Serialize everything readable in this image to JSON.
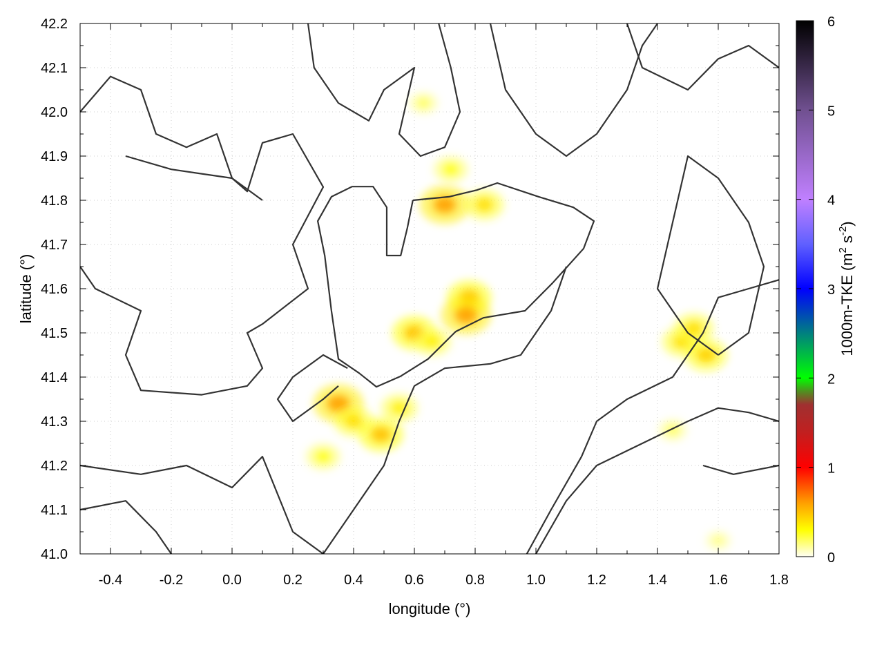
{
  "chart_data": {
    "type": "heatmap",
    "title": "",
    "xlabel": "longitude (°)",
    "ylabel": "latitude (°)",
    "colorbar_label": "1000m-TKE (m² s⁻²)",
    "colorbar_label_parts": {
      "main": "1000m-TKE (m",
      "sup1": "2",
      "mid": " s",
      "sup2": "-2",
      "end": ")"
    },
    "xlim": [
      -0.5,
      1.8
    ],
    "ylim": [
      41.0,
      42.2
    ],
    "zlim": [
      0,
      6
    ],
    "grid": true,
    "xticks": [
      "-0.4",
      "-0.2",
      "0.0",
      "0.2",
      "0.4",
      "0.6",
      "0.8",
      "1.0",
      "1.2",
      "1.4",
      "1.6",
      "1.8"
    ],
    "yticks": [
      "41.0",
      "41.1",
      "41.2",
      "41.3",
      "41.4",
      "41.5",
      "41.6",
      "41.7",
      "41.8",
      "41.9",
      "42.0",
      "42.1",
      "42.2"
    ],
    "cbticks": [
      "0",
      "1",
      "2",
      "3",
      "4",
      "5",
      "6"
    ],
    "colormap": [
      {
        "v": 0,
        "c": "#fffff4"
      },
      {
        "v": 0.3,
        "c": "#ffff00"
      },
      {
        "v": 0.6,
        "c": "#ffa000"
      },
      {
        "v": 1.0,
        "c": "#ff0000"
      },
      {
        "v": 1.4,
        "c": "#c02020"
      },
      {
        "v": 1.7,
        "c": "#a03030"
      },
      {
        "v": 1.85,
        "c": "#509020"
      },
      {
        "v": 2.0,
        "c": "#00ff00"
      },
      {
        "v": 2.5,
        "c": "#008080"
      },
      {
        "v": 3.0,
        "c": "#0000ff"
      },
      {
        "v": 3.5,
        "c": "#6060ff"
      },
      {
        "v": 4.0,
        "c": "#c080ff"
      },
      {
        "v": 5.0,
        "c": "#705090"
      },
      {
        "v": 6.0,
        "c": "#000000"
      }
    ],
    "contour_color": "#333333",
    "tke_hotspots": [
      {
        "lon": 0.7,
        "lat": 41.79,
        "value": 0.6
      },
      {
        "lon": 0.83,
        "lat": 41.79,
        "value": 0.4
      },
      {
        "lon": 0.78,
        "lat": 41.58,
        "value": 0.5
      },
      {
        "lon": 0.77,
        "lat": 41.54,
        "value": 0.6
      },
      {
        "lon": 0.6,
        "lat": 41.5,
        "value": 0.5
      },
      {
        "lon": 0.35,
        "lat": 41.34,
        "value": 0.6
      },
      {
        "lon": 0.49,
        "lat": 41.27,
        "value": 0.5
      },
      {
        "lon": 0.4,
        "lat": 41.3,
        "value": 0.4
      },
      {
        "lon": 1.48,
        "lat": 41.48,
        "value": 0.4
      },
      {
        "lon": 1.56,
        "lat": 41.45,
        "value": 0.45
      },
      {
        "lon": 1.52,
        "lat": 41.51,
        "value": 0.4
      },
      {
        "lon": 0.72,
        "lat": 41.87,
        "value": 0.3
      },
      {
        "lon": 0.3,
        "lat": 41.22,
        "value": 0.3
      },
      {
        "lon": 1.6,
        "lat": 41.03,
        "value": 0.15
      },
      {
        "lon": 1.45,
        "lat": 41.28,
        "value": 0.2
      },
      {
        "lon": 0.63,
        "lat": 42.02,
        "value": 0.2
      },
      {
        "lon": 0.55,
        "lat": 41.33,
        "value": 0.35
      },
      {
        "lon": 0.66,
        "lat": 41.48,
        "value": 0.35
      }
    ],
    "contours": [
      [
        [
          0.595,
          41.8
        ],
        [
          0.714,
          41.808
        ],
        [
          0.805,
          41.823
        ],
        [
          0.873,
          41.839
        ],
        [
          1.009,
          41.808
        ],
        [
          1.123,
          41.784
        ],
        [
          1.191,
          41.753
        ],
        [
          1.157,
          41.691
        ],
        [
          1.055,
          41.613
        ],
        [
          0.964,
          41.55
        ],
        [
          0.827,
          41.534
        ],
        [
          0.736,
          41.503
        ],
        [
          0.645,
          41.441
        ],
        [
          0.555,
          41.402
        ],
        [
          0.475,
          41.378
        ],
        [
          0.418,
          41.409
        ],
        [
          0.35,
          41.441
        ],
        [
          0.327,
          41.55
        ],
        [
          0.305,
          41.675
        ],
        [
          0.282,
          41.753
        ],
        [
          0.327,
          41.808
        ],
        [
          0.395,
          41.831
        ],
        [
          0.464,
          41.831
        ],
        [
          0.509,
          41.784
        ],
        [
          0.509,
          41.675
        ],
        [
          0.555,
          41.675
        ],
        [
          0.577,
          41.738
        ],
        [
          0.595,
          41.8
        ]
      ],
      [
        [
          -0.5,
          41.65
        ],
        [
          -0.45,
          41.6
        ],
        [
          -0.3,
          41.55
        ],
        [
          -0.35,
          41.45
        ],
        [
          -0.3,
          41.37
        ],
        [
          -0.1,
          41.36
        ],
        [
          0.05,
          41.38
        ],
        [
          0.1,
          41.42
        ],
        [
          0.05,
          41.5
        ],
        [
          0.1,
          41.52
        ],
        [
          0.25,
          41.6
        ],
        [
          0.2,
          41.7
        ],
        [
          0.3,
          41.83
        ],
        [
          0.2,
          41.95
        ],
        [
          0.1,
          41.93
        ],
        [
          0.05,
          41.82
        ],
        [
          0.0,
          41.85
        ],
        [
          -0.2,
          41.87
        ],
        [
          -0.35,
          41.9
        ]
      ],
      [
        [
          0.97,
          41.0
        ],
        [
          1.05,
          41.1
        ],
        [
          1.15,
          41.22
        ],
        [
          1.2,
          41.3
        ],
        [
          1.3,
          41.35
        ],
        [
          1.45,
          41.4
        ],
        [
          1.55,
          41.5
        ],
        [
          1.6,
          41.58
        ],
        [
          1.7,
          41.6
        ],
        [
          1.8,
          41.62
        ]
      ],
      [
        [
          1.0,
          41.0
        ],
        [
          1.1,
          41.12
        ],
        [
          1.2,
          41.2
        ],
        [
          1.35,
          41.25
        ],
        [
          1.5,
          41.3
        ],
        [
          1.6,
          41.33
        ],
        [
          1.7,
          41.32
        ],
        [
          1.8,
          41.3
        ]
      ],
      [
        [
          -0.5,
          42.0
        ],
        [
          -0.4,
          42.08
        ],
        [
          -0.3,
          42.05
        ],
        [
          -0.25,
          41.95
        ],
        [
          -0.15,
          41.92
        ],
        [
          -0.05,
          41.95
        ],
        [
          0.0,
          41.85
        ],
        [
          0.1,
          41.8
        ]
      ],
      [
        [
          0.85,
          42.2
        ],
        [
          0.9,
          42.05
        ],
        [
          1.0,
          41.95
        ],
        [
          1.1,
          41.9
        ],
        [
          1.2,
          41.95
        ],
        [
          1.3,
          42.05
        ],
        [
          1.35,
          42.15
        ],
        [
          1.4,
          42.2
        ]
      ],
      [
        [
          -0.5,
          41.2
        ],
        [
          -0.3,
          41.18
        ],
        [
          -0.15,
          41.2
        ],
        [
          0.0,
          41.15
        ],
        [
          0.1,
          41.22
        ],
        [
          0.2,
          41.05
        ],
        [
          0.3,
          41.0
        ]
      ],
      [
        [
          1.6,
          41.45
        ],
        [
          1.7,
          41.5
        ],
        [
          1.75,
          41.65
        ],
        [
          1.7,
          41.75
        ],
        [
          1.6,
          41.85
        ],
        [
          1.5,
          41.9
        ],
        [
          1.45,
          41.75
        ],
        [
          1.4,
          41.6
        ],
        [
          1.5,
          41.5
        ],
        [
          1.6,
          41.45
        ]
      ],
      [
        [
          0.3,
          41.0
        ],
        [
          0.4,
          41.1
        ],
        [
          0.5,
          41.2
        ],
        [
          0.55,
          41.3
        ],
        [
          0.6,
          41.38
        ],
        [
          0.7,
          41.42
        ],
        [
          0.85,
          41.43
        ],
        [
          0.95,
          41.45
        ],
        [
          1.05,
          41.55
        ],
        [
          1.1,
          41.65
        ]
      ],
      [
        [
          0.25,
          42.2
        ],
        [
          0.27,
          42.1
        ],
        [
          0.35,
          42.02
        ],
        [
          0.45,
          41.98
        ],
        [
          0.5,
          42.05
        ],
        [
          0.6,
          42.1
        ],
        [
          0.55,
          41.95
        ],
        [
          0.62,
          41.9
        ],
        [
          0.7,
          41.92
        ],
        [
          0.75,
          42.0
        ],
        [
          0.72,
          42.1
        ],
        [
          0.68,
          42.2
        ]
      ],
      [
        [
          0.35,
          41.38
        ],
        [
          0.3,
          41.35
        ],
        [
          0.2,
          41.3
        ],
        [
          0.15,
          41.35
        ],
        [
          0.2,
          41.4
        ],
        [
          0.3,
          41.45
        ],
        [
          0.38,
          41.42
        ]
      ],
      [
        [
          -0.5,
          41.1
        ],
        [
          -0.35,
          41.12
        ],
        [
          -0.25,
          41.05
        ],
        [
          -0.2,
          41.0
        ]
      ],
      [
        [
          1.55,
          41.2
        ],
        [
          1.65,
          41.18
        ],
        [
          1.8,
          41.2
        ]
      ],
      [
        [
          1.3,
          42.2
        ],
        [
          1.35,
          42.1
        ],
        [
          1.5,
          42.05
        ],
        [
          1.6,
          42.12
        ],
        [
          1.7,
          42.15
        ],
        [
          1.8,
          42.1
        ]
      ]
    ]
  }
}
